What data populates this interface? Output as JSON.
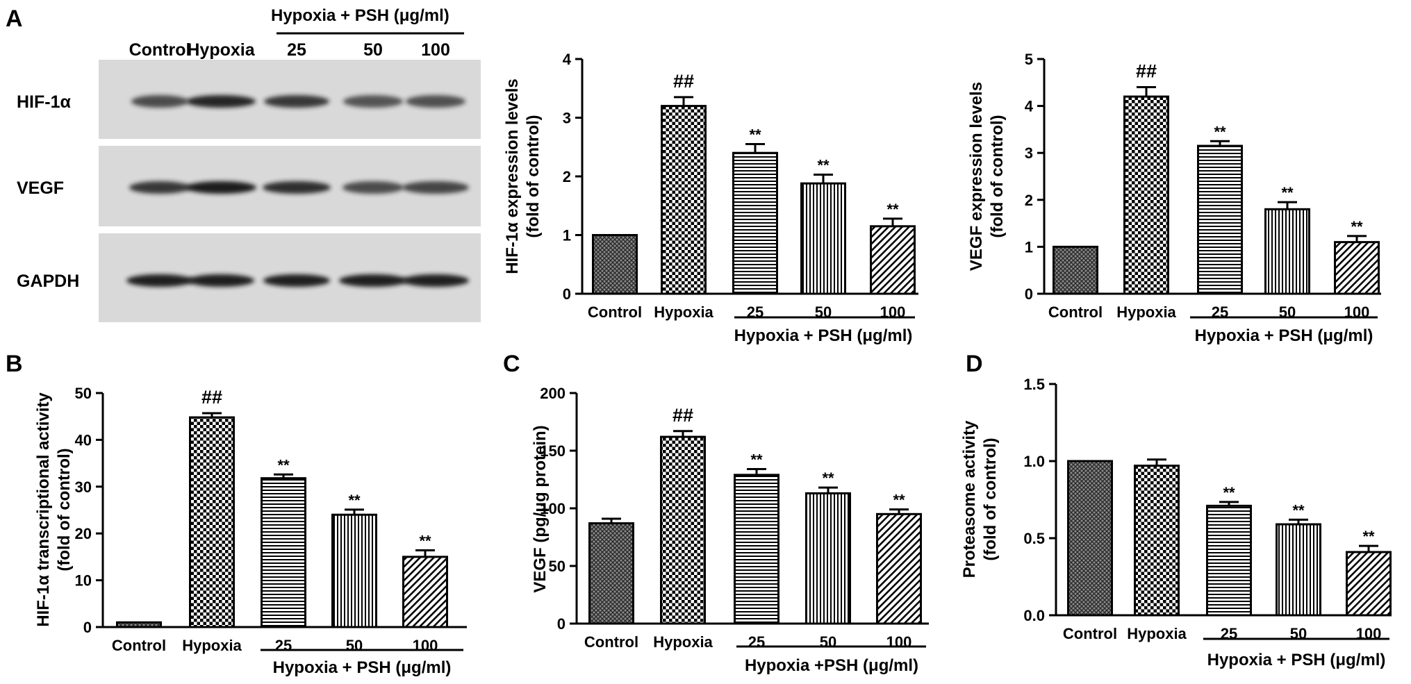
{
  "panels": {
    "A": "A",
    "B": "B",
    "C": "C",
    "D": "D"
  },
  "blot": {
    "group_label": "Hypoxia + PSH (μg/ml)",
    "lanes": [
      "Control",
      "Hypoxia",
      "25",
      "50",
      "100"
    ],
    "bands": [
      "HIF-1α",
      "VEGF",
      "GAPDH"
    ]
  },
  "colors": {
    "ink": "#000000",
    "gel_background": "#d9d9d9",
    "band": "#1c1c1c"
  },
  "chart_data": [
    {
      "id": "A-HIF",
      "type": "bar",
      "categories": [
        "Control",
        "Hypoxia",
        "25",
        "50",
        "100"
      ],
      "values": [
        1.0,
        3.2,
        2.4,
        1.88,
        1.15
      ],
      "errors": [
        0,
        0.15,
        0.15,
        0.15,
        0.13
      ],
      "annotations": [
        "",
        "##",
        "**",
        "**",
        "**"
      ],
      "patterns": [
        "crosshatch",
        "checker",
        "hstripe",
        "vstripe",
        "diag"
      ],
      "ylabel_lines": [
        "HIF-1α expression levels",
        "(fold of control)"
      ],
      "group_label": "Hypoxia + PSH (μg/ml)",
      "ylim": [
        0,
        4
      ],
      "yticks": [
        0,
        1,
        2,
        3,
        4
      ],
      "ytick_labels": [
        "0",
        "1",
        "2",
        "3",
        "4"
      ]
    },
    {
      "id": "A-VEGF",
      "type": "bar",
      "categories": [
        "Control",
        "Hypoxia",
        "25",
        "50",
        "100"
      ],
      "values": [
        1.0,
        4.2,
        3.15,
        1.8,
        1.1
      ],
      "errors": [
        0,
        0.2,
        0.1,
        0.15,
        0.13
      ],
      "annotations": [
        "",
        "##",
        "**",
        "**",
        "**"
      ],
      "patterns": [
        "crosshatch",
        "checker",
        "hstripe",
        "vstripe",
        "diag"
      ],
      "ylabel_lines": [
        "VEGF expression levels",
        "(fold of control)"
      ],
      "group_label": "Hypoxia + PSH (μg/ml)",
      "ylim": [
        0,
        5
      ],
      "yticks": [
        0,
        1,
        2,
        3,
        4,
        5
      ],
      "ytick_labels": [
        "0",
        "1",
        "2",
        "3",
        "4",
        "5"
      ]
    },
    {
      "id": "B",
      "type": "bar",
      "categories": [
        "Control",
        "Hypoxia",
        "25",
        "50",
        "100"
      ],
      "values": [
        1.0,
        44.8,
        31.8,
        24.0,
        15.0
      ],
      "errors": [
        0,
        0.9,
        0.8,
        1.1,
        1.4
      ],
      "annotations": [
        "",
        "##",
        "**",
        "**",
        "**"
      ],
      "patterns": [
        "crosshatch",
        "checker",
        "hstripe",
        "vstripe",
        "diag"
      ],
      "ylabel_lines": [
        "HIF-1α transcriptional activity",
        "(fold of control)"
      ],
      "group_label": "Hypoxia + PSH (μg/ml)",
      "ylim": [
        0,
        50
      ],
      "yticks": [
        0,
        10,
        20,
        30,
        40,
        50
      ],
      "ytick_labels": [
        "0",
        "10",
        "20",
        "30",
        "40",
        "50"
      ]
    },
    {
      "id": "C",
      "type": "bar",
      "categories": [
        "Control",
        "Hypoxia",
        "25",
        "50",
        "100"
      ],
      "values": [
        87,
        162,
        129,
        113,
        95
      ],
      "errors": [
        4,
        5,
        5,
        5,
        4
      ],
      "annotations": [
        "",
        "##",
        "**",
        "**",
        "**"
      ],
      "patterns": [
        "crosshatch",
        "checker",
        "hstripe",
        "vstripe",
        "diag"
      ],
      "ylabel_lines": [
        "VEGF (pg/μg protein)"
      ],
      "group_label": "Hypoxia +PSH (μg/ml)",
      "ylim": [
        0,
        200
      ],
      "yticks": [
        0,
        50,
        100,
        150,
        200
      ],
      "ytick_labels": [
        "0",
        "50",
        "100",
        "150",
        "200"
      ]
    },
    {
      "id": "D",
      "type": "bar",
      "categories": [
        "Control",
        "Hypoxia",
        "25",
        "50",
        "100"
      ],
      "values": [
        1.0,
        0.97,
        0.71,
        0.59,
        0.41
      ],
      "errors": [
        0,
        0.04,
        0.025,
        0.03,
        0.04
      ],
      "annotations": [
        "",
        "",
        "**",
        "**",
        "**"
      ],
      "patterns": [
        "crosshatch",
        "checker",
        "hstripe",
        "vstripe",
        "diag"
      ],
      "ylabel_lines": [
        "Proteasome activity",
        "(fold of control)"
      ],
      "group_label": "Hypoxia + PSH (μg/ml)",
      "ylim": [
        0,
        1.5
      ],
      "yticks": [
        0,
        0.5,
        1.0,
        1.5
      ],
      "ytick_labels": [
        "0.0",
        "0.5",
        "1.0",
        "1.5"
      ]
    }
  ]
}
